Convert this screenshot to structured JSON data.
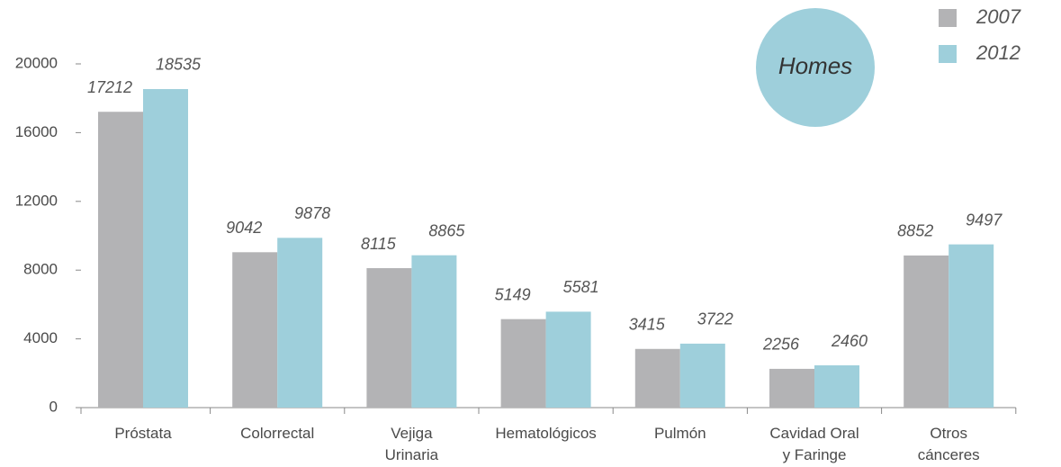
{
  "chart_data": {
    "type": "bar",
    "annotation": "Homes",
    "categories": [
      [
        "Próstata"
      ],
      [
        "Colorrectal"
      ],
      [
        "Vejiga",
        "Urinaria"
      ],
      [
        "Hematológicos"
      ],
      [
        "Pulmón"
      ],
      [
        "Cavidad Oral",
        "y Faringe"
      ],
      [
        "Otros",
        "cánceres"
      ]
    ],
    "series": [
      {
        "name": "2007",
        "color": "#b3b3b5",
        "values": [
          17212,
          9042,
          8115,
          5149,
          3415,
          2256,
          8852
        ]
      },
      {
        "name": "2012",
        "color": "#9ecfdb",
        "values": [
          18535,
          9878,
          8865,
          5581,
          3722,
          2460,
          9497
        ]
      }
    ],
    "ylim": [
      0,
      20000
    ],
    "yticks": [
      0,
      4000,
      8000,
      12000,
      16000,
      20000
    ],
    "grid": false,
    "legend": "top-right"
  }
}
